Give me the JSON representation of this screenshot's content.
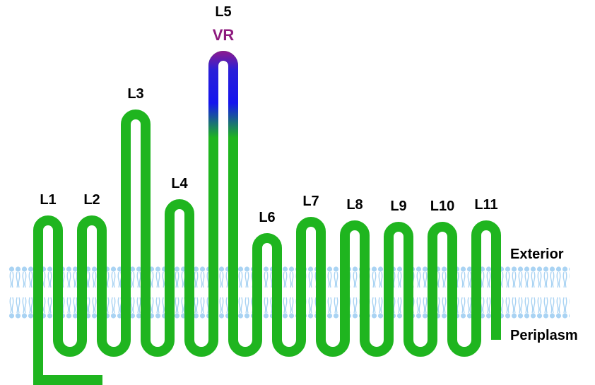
{
  "loops": [
    {
      "label": "L1"
    },
    {
      "label": "L2"
    },
    {
      "label": "L3"
    },
    {
      "label": "L4"
    },
    {
      "label": "L5"
    },
    {
      "label": "L6"
    },
    {
      "label": "L7"
    },
    {
      "label": "L8"
    },
    {
      "label": "L9"
    },
    {
      "label": "L10"
    },
    {
      "label": "L11"
    }
  ],
  "vr_label": "VR",
  "exterior": "Exterior",
  "periplasm": "Periplasm"
}
